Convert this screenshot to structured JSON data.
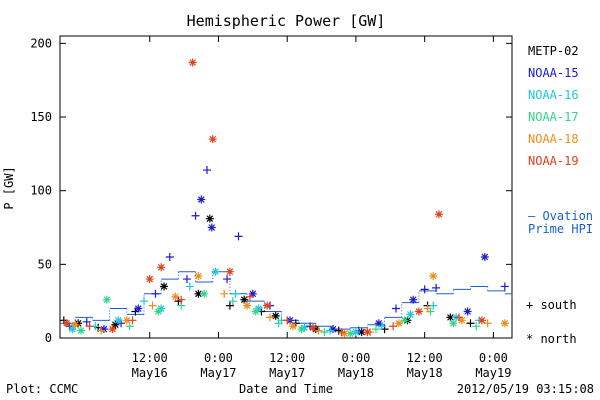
{
  "footer": {
    "plot_credit": "Plot: CCMC",
    "timestamp": "2012/05/19 03:15:08"
  },
  "legend_entries": [
    {
      "label": "METP-02",
      "color": "#000000"
    },
    {
      "label": "NOAA-15",
      "color": "#1a1ad0"
    },
    {
      "label": "NOAA-16",
      "color": "#19c8e0"
    },
    {
      "label": "NOAA-17",
      "color": "#2fd68a"
    },
    {
      "label": "NOAA-18",
      "color": "#f08c1a"
    },
    {
      "label": "NOAA-19",
      "color": "#e0401a"
    }
  ],
  "ovation": {
    "line1": "— Ovation",
    "line2": "Prime HPI",
    "color": "#1a5fd0"
  },
  "markers": {
    "south_label": "+ south",
    "north_label": "* north"
  },
  "chart_data": {
    "type": "scatter",
    "title": "Hemispheric Power [GW]",
    "xlabel": "Date and Time",
    "ylabel": "P [GW]",
    "xlim": [
      "2012-05-15T20:20",
      "2012-05-19T03:15"
    ],
    "ylim": [
      0,
      205
    ],
    "yticks": [
      0,
      50,
      100,
      150,
      200
    ],
    "xticks": [
      {
        "t": "2012-05-16T12:00",
        "time": "12:00",
        "date": "May16"
      },
      {
        "t": "2012-05-17T00:00",
        "time": "0:00",
        "date": "May17"
      },
      {
        "t": "2012-05-17T12:00",
        "time": "12:00",
        "date": "May17"
      },
      {
        "t": "2012-05-18T00:00",
        "time": "0:00",
        "date": "May18"
      },
      {
        "t": "2012-05-18T12:00",
        "time": "12:00",
        "date": "May18"
      },
      {
        "t": "2012-05-19T00:00",
        "time": "0:00",
        "date": "May19"
      }
    ],
    "series": [
      {
        "name": "METP-02",
        "color": "#000000",
        "points": [
          [
            "2012-05-15T21:00",
            12,
            "+"
          ],
          [
            "2012-05-15T23:30",
            10,
            "*"
          ],
          [
            "2012-05-16T03:00",
            7,
            "+"
          ],
          [
            "2012-05-16T06:00",
            9,
            "*"
          ],
          [
            "2012-05-16T09:30",
            18,
            "+"
          ],
          [
            "2012-05-16T14:30",
            35,
            "*"
          ],
          [
            "2012-05-16T17:00",
            25,
            "+"
          ],
          [
            "2012-05-16T20:30",
            30,
            "*"
          ],
          [
            "2012-05-16T22:30",
            81,
            "*"
          ],
          [
            "2012-05-17T02:00",
            22,
            "+"
          ],
          [
            "2012-05-17T04:30",
            26,
            "*"
          ],
          [
            "2012-05-17T07:30",
            18,
            "+"
          ],
          [
            "2012-05-17T10:00",
            15,
            "*"
          ],
          [
            "2012-05-17T13:30",
            10,
            "+"
          ],
          [
            "2012-05-17T17:00",
            6,
            "*"
          ],
          [
            "2012-05-17T21:00",
            5,
            "+"
          ],
          [
            "2012-05-18T01:00",
            4,
            "*"
          ],
          [
            "2012-05-18T05:00",
            6,
            "+"
          ],
          [
            "2012-05-18T09:00",
            12,
            "*"
          ],
          [
            "2012-05-18T12:30",
            22,
            "+"
          ],
          [
            "2012-05-18T16:30",
            14,
            "*"
          ],
          [
            "2012-05-18T20:00",
            10,
            "+"
          ]
        ]
      },
      {
        "name": "NOAA-15",
        "color": "#1a1ad0",
        "points": [
          [
            "2012-05-15T22:00",
            8,
            "+"
          ],
          [
            "2012-05-16T01:00",
            11,
            "+"
          ],
          [
            "2012-05-16T04:00",
            6,
            "*"
          ],
          [
            "2012-05-16T07:00",
            10,
            "+"
          ],
          [
            "2012-05-16T10:00",
            20,
            "*"
          ],
          [
            "2012-05-16T13:00",
            30,
            "+"
          ],
          [
            "2012-05-16T15:30",
            55,
            "+"
          ],
          [
            "2012-05-16T18:30",
            40,
            "+"
          ],
          [
            "2012-05-16T20:00",
            83,
            "+"
          ],
          [
            "2012-05-16T21:00",
            94,
            "*"
          ],
          [
            "2012-05-16T22:00",
            114,
            "+"
          ],
          [
            "2012-05-16T22:50",
            75,
            "*"
          ],
          [
            "2012-05-17T01:30",
            40,
            "+"
          ],
          [
            "2012-05-17T03:30",
            69,
            "+"
          ],
          [
            "2012-05-17T06:00",
            30,
            "*"
          ],
          [
            "2012-05-17T09:00",
            22,
            "+"
          ],
          [
            "2012-05-17T12:30",
            12,
            "*"
          ],
          [
            "2012-05-17T16:00",
            8,
            "+"
          ],
          [
            "2012-05-17T20:00",
            6,
            "*"
          ],
          [
            "2012-05-18T00:30",
            5,
            "+"
          ],
          [
            "2012-05-18T04:00",
            10,
            "*"
          ],
          [
            "2012-05-18T07:00",
            20,
            "+"
          ],
          [
            "2012-05-18T10:00",
            26,
            "*"
          ],
          [
            "2012-05-18T12:00",
            33,
            "+"
          ],
          [
            "2012-05-18T14:00",
            34,
            "+"
          ],
          [
            "2012-05-18T19:30",
            18,
            "*"
          ],
          [
            "2012-05-18T22:30",
            55,
            "*"
          ],
          [
            "2012-05-19T02:00",
            35,
            "+"
          ]
        ]
      },
      {
        "name": "NOAA-16",
        "color": "#19c8e0",
        "points": [
          [
            "2012-05-15T22:30",
            6,
            "*"
          ],
          [
            "2012-05-16T02:30",
            8,
            "+"
          ],
          [
            "2012-05-16T06:30",
            12,
            "*"
          ],
          [
            "2012-05-16T11:00",
            25,
            "+"
          ],
          [
            "2012-05-16T14:00",
            20,
            "*"
          ],
          [
            "2012-05-16T19:00",
            35,
            "+"
          ],
          [
            "2012-05-16T23:30",
            45,
            "*"
          ],
          [
            "2012-05-17T03:00",
            30,
            "+"
          ],
          [
            "2012-05-17T07:00",
            20,
            "*"
          ],
          [
            "2012-05-17T11:00",
            12,
            "+"
          ],
          [
            "2012-05-17T15:00",
            7,
            "*"
          ],
          [
            "2012-05-17T19:30",
            5,
            "+"
          ],
          [
            "2012-05-18T00:00",
            4,
            "*"
          ],
          [
            "2012-05-18T04:30",
            8,
            "+"
          ],
          [
            "2012-05-18T09:30",
            16,
            "*"
          ],
          [
            "2012-05-18T13:30",
            22,
            "+"
          ],
          [
            "2012-05-18T17:30",
            14,
            "*"
          ],
          [
            "2012-05-18T21:30",
            12,
            "+"
          ]
        ]
      },
      {
        "name": "NOAA-17",
        "color": "#2fd68a",
        "points": [
          [
            "2012-05-16T00:00",
            5,
            "*"
          ],
          [
            "2012-05-16T04:30",
            26,
            "*"
          ],
          [
            "2012-05-16T08:30",
            8,
            "+"
          ],
          [
            "2012-05-16T13:30",
            18,
            "*"
          ],
          [
            "2012-05-16T17:30",
            22,
            "+"
          ],
          [
            "2012-05-16T21:30",
            30,
            "*"
          ],
          [
            "2012-05-17T02:30",
            25,
            "+"
          ],
          [
            "2012-05-17T06:30",
            18,
            "*"
          ],
          [
            "2012-05-17T10:30",
            10,
            "+"
          ],
          [
            "2012-05-17T14:30",
            6,
            "*"
          ],
          [
            "2012-05-17T18:30",
            4,
            "+"
          ],
          [
            "2012-05-17T23:00",
            3,
            "*"
          ],
          [
            "2012-05-18T03:30",
            6,
            "+"
          ],
          [
            "2012-05-18T08:30",
            12,
            "*"
          ],
          [
            "2012-05-18T13:00",
            18,
            "+"
          ],
          [
            "2012-05-18T17:00",
            10,
            "*"
          ],
          [
            "2012-05-18T21:00",
            8,
            "+"
          ]
        ]
      },
      {
        "name": "NOAA-18",
        "color": "#f08c1a",
        "points": [
          [
            "2012-05-15T23:00",
            9,
            "*"
          ],
          [
            "2012-05-16T03:30",
            5,
            "+"
          ],
          [
            "2012-05-16T08:00",
            12,
            "*"
          ],
          [
            "2012-05-16T12:30",
            22,
            "+"
          ],
          [
            "2012-05-16T16:30",
            28,
            "*"
          ],
          [
            "2012-05-16T20:30",
            42,
            "*"
          ],
          [
            "2012-05-17T01:00",
            30,
            "+"
          ],
          [
            "2012-05-17T05:00",
            22,
            "*"
          ],
          [
            "2012-05-17T09:00",
            14,
            "+"
          ],
          [
            "2012-05-17T13:00",
            8,
            "*"
          ],
          [
            "2012-05-17T17:30",
            5,
            "+"
          ],
          [
            "2012-05-17T22:00",
            3,
            "*"
          ],
          [
            "2012-05-18T02:30",
            4,
            "+"
          ],
          [
            "2012-05-18T07:30",
            10,
            "*"
          ],
          [
            "2012-05-18T12:30",
            20,
            "+"
          ],
          [
            "2012-05-18T13:30",
            42,
            "*"
          ],
          [
            "2012-05-18T18:30",
            12,
            "*"
          ],
          [
            "2012-05-18T23:00",
            10,
            "+"
          ],
          [
            "2012-05-19T02:00",
            10,
            "*"
          ]
        ]
      },
      {
        "name": "NOAA-19",
        "color": "#e0401a",
        "points": [
          [
            "2012-05-15T21:30",
            10,
            "*"
          ],
          [
            "2012-05-16T01:30",
            8,
            "+"
          ],
          [
            "2012-05-16T05:30",
            6,
            "*"
          ],
          [
            "2012-05-16T09:00",
            12,
            "+"
          ],
          [
            "2012-05-16T12:00",
            40,
            "*"
          ],
          [
            "2012-05-16T14:00",
            48,
            "*"
          ],
          [
            "2012-05-16T17:30",
            26,
            "+"
          ],
          [
            "2012-05-16T19:30",
            187,
            "*"
          ],
          [
            "2012-05-16T23:00",
            135,
            "*"
          ],
          [
            "2012-05-17T02:00",
            45,
            "*"
          ],
          [
            "2012-05-17T05:30",
            28,
            "+"
          ],
          [
            "2012-05-17T08:30",
            22,
            "*"
          ],
          [
            "2012-05-17T12:00",
            12,
            "+"
          ],
          [
            "2012-05-17T16:30",
            7,
            "*"
          ],
          [
            "2012-05-17T21:30",
            4,
            "+"
          ],
          [
            "2012-05-18T02:00",
            4,
            "*"
          ],
          [
            "2012-05-18T06:30",
            8,
            "+"
          ],
          [
            "2012-05-18T11:00",
            18,
            "*"
          ],
          [
            "2012-05-18T14:30",
            84,
            "*"
          ],
          [
            "2012-05-18T18:00",
            14,
            "+"
          ],
          [
            "2012-05-18T22:00",
            12,
            "*"
          ]
        ]
      }
    ],
    "ovation_hpi": [
      [
        "2012-05-15T20:20",
        10
      ],
      [
        "2012-05-15T23:00",
        14
      ],
      [
        "2012-05-16T02:00",
        12
      ],
      [
        "2012-05-16T05:00",
        20
      ],
      [
        "2012-05-16T08:00",
        16
      ],
      [
        "2012-05-16T11:00",
        30
      ],
      [
        "2012-05-16T14:00",
        40
      ],
      [
        "2012-05-16T17:00",
        45
      ],
      [
        "2012-05-16T20:00",
        38
      ],
      [
        "2012-05-16T23:00",
        45
      ],
      [
        "2012-05-17T02:00",
        30
      ],
      [
        "2012-05-17T05:00",
        25
      ],
      [
        "2012-05-17T08:00",
        18
      ],
      [
        "2012-05-17T11:00",
        12
      ],
      [
        "2012-05-17T14:00",
        10
      ],
      [
        "2012-05-17T17:00",
        8
      ],
      [
        "2012-05-17T20:00",
        6
      ],
      [
        "2012-05-17T23:00",
        7
      ],
      [
        "2012-05-18T02:00",
        9
      ],
      [
        "2012-05-18T05:00",
        14
      ],
      [
        "2012-05-18T08:00",
        24
      ],
      [
        "2012-05-18T11:00",
        32
      ],
      [
        "2012-05-18T14:00",
        30
      ],
      [
        "2012-05-18T17:00",
        33
      ],
      [
        "2012-05-18T20:00",
        35
      ],
      [
        "2012-05-18T23:00",
        32
      ],
      [
        "2012-05-19T02:00",
        30
      ],
      [
        "2012-05-19T03:15",
        26
      ]
    ]
  }
}
